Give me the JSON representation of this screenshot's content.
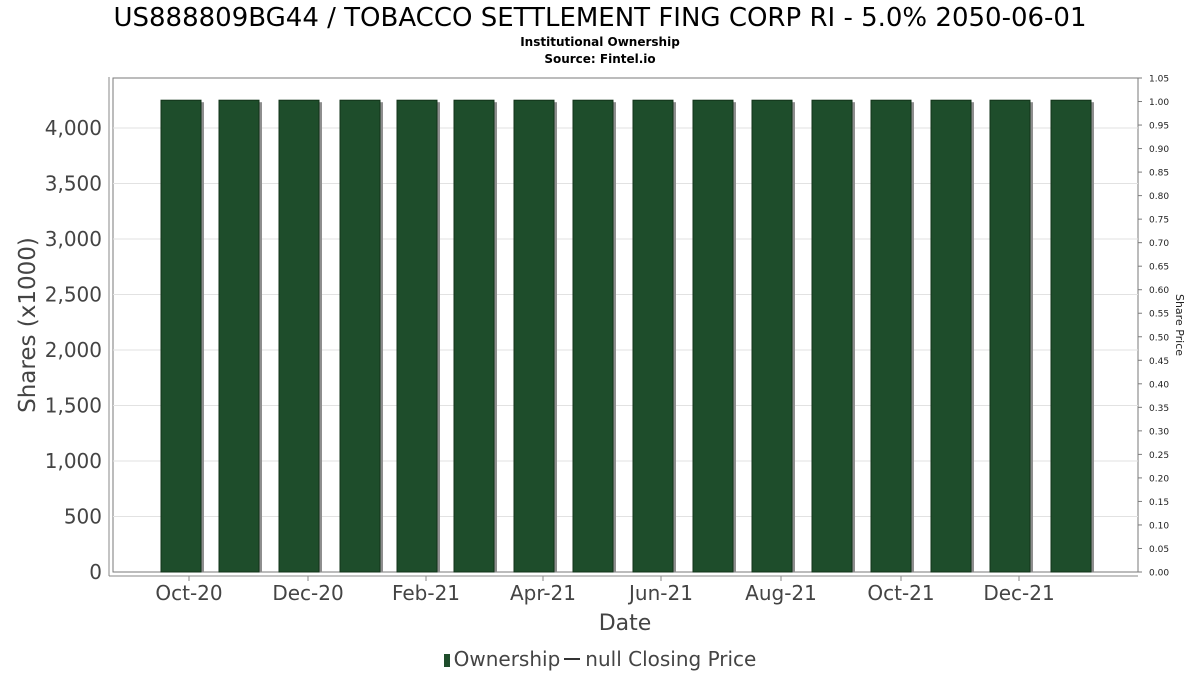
{
  "chart_data": {
    "type": "bar",
    "title": "US888809BG44 / TOBACCO SETTLEMENT FING CORP RI - 5.0% 2050-06-01",
    "subtitle": "Institutional Ownership",
    "source": "Source: Fintel.io",
    "xlabel": "Date",
    "ylabel": "Shares (x1000)",
    "y2label": "Share Price",
    "ylim": [
      0,
      4450
    ],
    "y2lim": [
      0,
      1.05
    ],
    "yticks": [
      "0",
      "500",
      "1,000",
      "1,500",
      "2,000",
      "2,500",
      "3,000",
      "3,500",
      "4,000"
    ],
    "y2ticks": [
      "0.00",
      "0.05",
      "0.10",
      "0.15",
      "0.20",
      "0.25",
      "0.30",
      "0.35",
      "0.40",
      "0.45",
      "0.50",
      "0.55",
      "0.60",
      "0.65",
      "0.70",
      "0.75",
      "0.80",
      "0.85",
      "0.90",
      "0.95",
      "1.00",
      "1.05"
    ],
    "xticks": [
      "Oct-20",
      "Dec-20",
      "Feb-21",
      "Apr-21",
      "Jun-21",
      "Aug-21",
      "Oct-21",
      "Dec-21"
    ],
    "grid": true,
    "legend_position": "bottom",
    "series": [
      {
        "name": "Ownership",
        "color": "#1e4d2b",
        "values": [
          4250,
          4250,
          4250,
          4250,
          4250,
          4250,
          4250,
          4250,
          4250,
          4250,
          4250,
          4250,
          4250,
          4250,
          4250,
          4250
        ]
      }
    ]
  },
  "legend": {
    "items": [
      "Ownership",
      "null Closing Price"
    ]
  }
}
